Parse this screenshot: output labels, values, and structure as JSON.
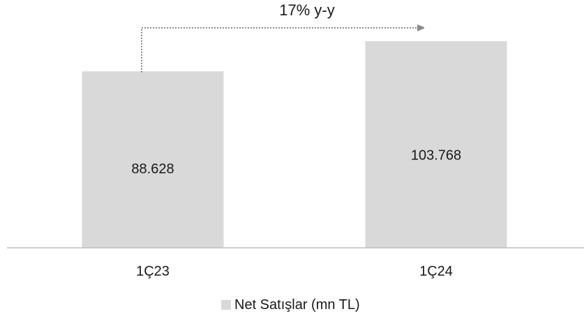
{
  "chart_data": {
    "type": "bar",
    "categories": [
      "1Ç23",
      "1Ç24"
    ],
    "series": [
      {
        "name": "Net Satışlar (mn TL)",
        "values": [
          88628,
          103768
        ],
        "labels": [
          "88.628",
          "103.768"
        ],
        "color": "#d9d9d9"
      }
    ],
    "annotation": {
      "text": "17% y-y",
      "style": "dotted-arrow",
      "color": "#8c8c8c"
    },
    "legend": {
      "position": "bottom",
      "label": "Net Satışlar (mn TL)"
    },
    "ylim": [
      0,
      115000
    ],
    "grid": false,
    "axis_color": "#bfbfbf",
    "text_color": "#1a1a1a"
  }
}
